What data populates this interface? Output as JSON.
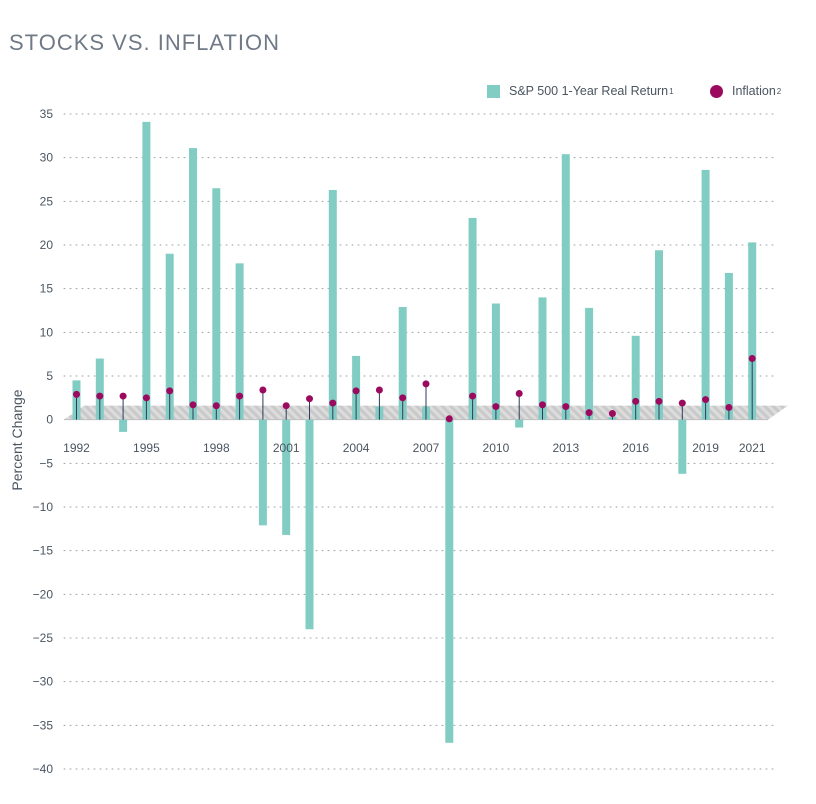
{
  "title": "STOCKS VS. INFLATION",
  "colors": {
    "stocks": "#82cdc3",
    "inflation": "#9b0a5e",
    "grid": "#9aa3ab",
    "text": "#4a5560",
    "band": "#d9d9d9"
  },
  "legend": {
    "stocks_label": "S&P 500 1-Year Real Return",
    "stocks_sup": "1",
    "inflation_label": "Inflation",
    "inflation_sup": "2"
  },
  "chart_data": {
    "type": "bar",
    "ylabel": "Percent Change",
    "ylim": [
      -40,
      35
    ],
    "yticks": [
      35,
      30,
      25,
      20,
      15,
      10,
      5,
      0,
      -5,
      -10,
      -15,
      -20,
      -25,
      -30,
      -35,
      -40
    ],
    "ytick_labels": [
      "35",
      "30",
      "25",
      "20",
      "15",
      "10",
      "5",
      "0",
      "−5",
      "−10",
      "−15",
      "−20",
      "−25",
      "−30",
      "−35",
      "−40"
    ],
    "grid": true,
    "legend_position": "top-right",
    "x": [
      1992,
      1993,
      1994,
      1995,
      1996,
      1997,
      1998,
      1999,
      2000,
      2001,
      2002,
      2003,
      2004,
      2005,
      2006,
      2007,
      2008,
      2009,
      2010,
      2011,
      2012,
      2013,
      2014,
      2015,
      2016,
      2017,
      2018,
      2019,
      2020,
      2021
    ],
    "xtick_labels": [
      "1992",
      "1995",
      "1998",
      "2001",
      "2004",
      "2007",
      "2010",
      "2013",
      "2016",
      "2019",
      "2021"
    ],
    "series": [
      {
        "name": "S&P 500 1-Year Real Return",
        "kind": "bar",
        "values": [
          4.5,
          7.0,
          -1.4,
          34.1,
          19.0,
          31.1,
          26.5,
          17.9,
          -12.1,
          -13.2,
          -24.0,
          26.3,
          7.3,
          1.5,
          12.9,
          1.5,
          -37.0,
          23.1,
          13.3,
          -0.9,
          14.0,
          30.4,
          12.8,
          0.3,
          9.6,
          19.4,
          -6.2,
          28.6,
          16.8,
          20.3
        ]
      },
      {
        "name": "Inflation",
        "kind": "point",
        "values": [
          2.9,
          2.7,
          2.7,
          2.5,
          3.3,
          1.7,
          1.6,
          2.7,
          3.4,
          1.6,
          2.4,
          1.9,
          3.3,
          3.4,
          2.5,
          4.1,
          0.1,
          2.7,
          1.5,
          3.0,
          1.7,
          1.5,
          0.8,
          0.7,
          2.1,
          2.1,
          1.9,
          2.3,
          1.4,
          7.0
        ]
      }
    ]
  }
}
